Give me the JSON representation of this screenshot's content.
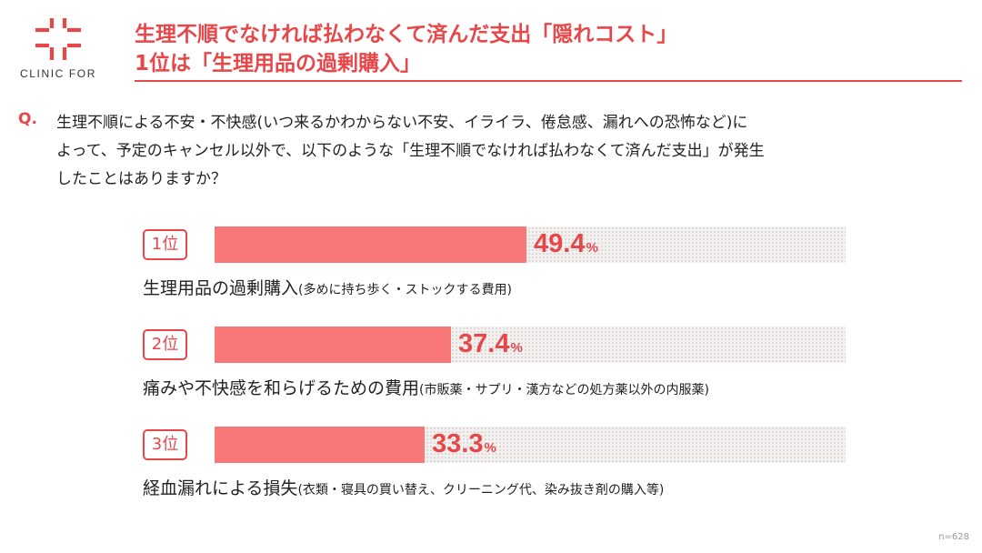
{
  "logo": {
    "text": "CLINIC FOR",
    "icon": "cross-logo-icon",
    "color": "#e8474a"
  },
  "title": {
    "line1": "生理不順でなければ払わなくて済んだ支出「隠れコスト」",
    "line2": "1位は「生理用品の過剰購入」"
  },
  "question": {
    "mark": "Q.",
    "lines": [
      "生理不順による不安・不快感(いつ来るかわからない不安、イライラ、倦怠感、漏れへの恐怖など)に",
      "よって、予定のキャンセル以外で、以下のような「生理不順でなければ払わなくて済んだ支出」が発生",
      "したことはありますか？"
    ]
  },
  "colors": {
    "accent": "#e8474a",
    "bar": "#f87878",
    "track": "#f3f0f0"
  },
  "chart_data": {
    "type": "bar",
    "orientation": "horizontal",
    "xlim": [
      0,
      100
    ],
    "unit": "%",
    "categories": [
      "生理用品の過剰購入(多めに持ち歩く・ストックする費用)",
      "痛みや不快感を和らげるための費用(市販薬・サプリ・漢方などの処方薬以外の内服薬)",
      "経血漏れによる損失(衣類・寝具の買い替え、クリーニング代、染み抜き剤の購入等)"
    ],
    "values": [
      49.4,
      37.4,
      33.3
    ],
    "items": [
      {
        "rank": "1位",
        "label": "生理用品の過剰購入",
        "note": "(多めに持ち歩く・ストックする費用)",
        "value": 49.4,
        "value_text": "49.4"
      },
      {
        "rank": "2位",
        "label": "痛みや不快感を和らげるための費用",
        "note": "(市販薬・サプリ・漢方などの処方薬以外の内服薬)",
        "value": 37.4,
        "value_text": "37.4"
      },
      {
        "rank": "3位",
        "label": "経血漏れによる損失",
        "note": "(衣類・寝具の買い替え、クリーニング代、染み抜き剤の購入等)",
        "value": 33.3,
        "value_text": "33.3"
      }
    ],
    "grid": false,
    "legend": "none"
  },
  "footnote": "n=628"
}
